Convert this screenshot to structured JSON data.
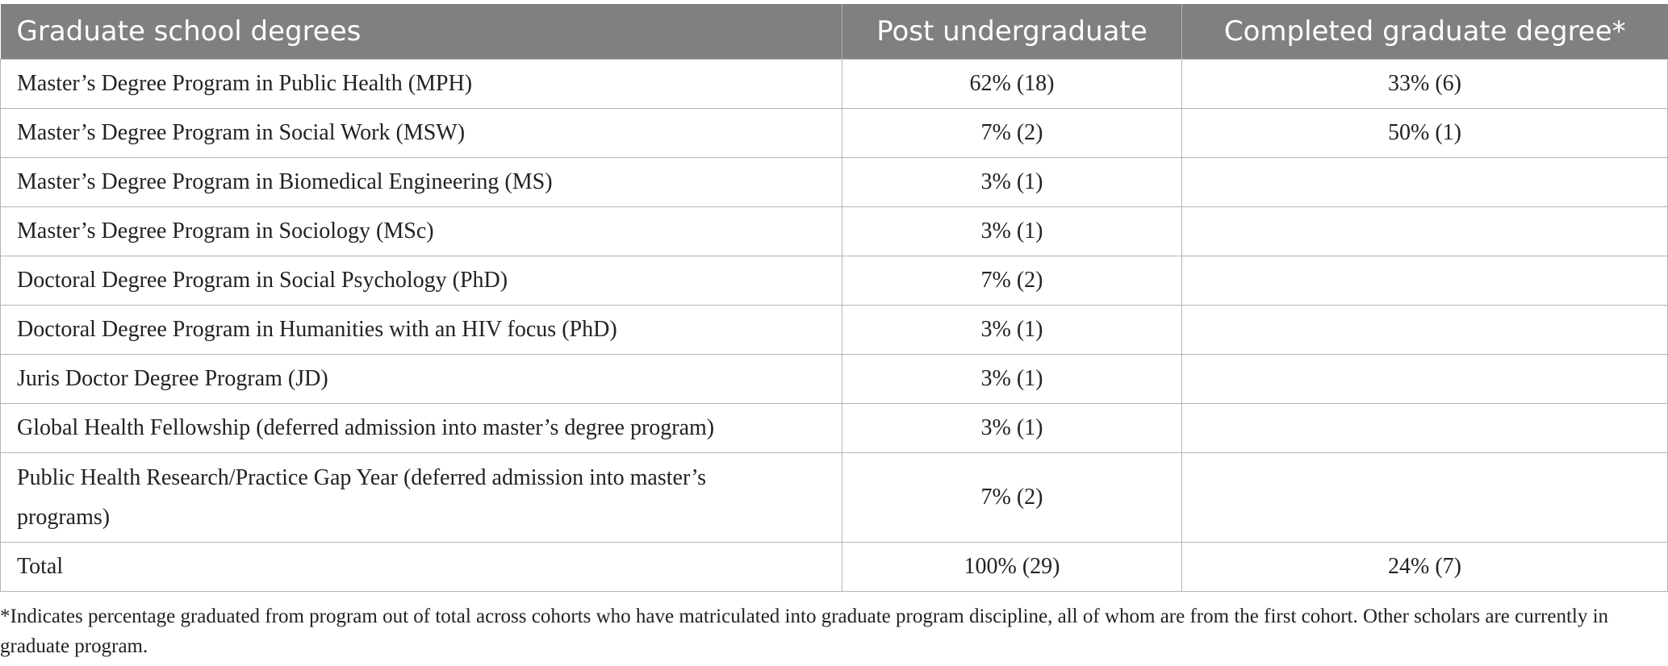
{
  "table": {
    "headers": [
      "Graduate school degrees",
      "Post undergraduate",
      "Completed graduate degree*"
    ],
    "rows": [
      [
        "Master’s Degree Program in Public Health (MPH)",
        "62% (18)",
        "33% (6)"
      ],
      [
        "Master’s Degree Program in Social Work (MSW)",
        "7% (2)",
        "50% (1)"
      ],
      [
        "Master’s Degree Program in Biomedical Engineering (MS)",
        "3% (1)",
        ""
      ],
      [
        "Master’s Degree Program in Sociology (MSc)",
        "3% (1)",
        ""
      ],
      [
        "Doctoral Degree Program in Social Psychology (PhD)",
        "7% (2)",
        ""
      ],
      [
        "Doctoral Degree Program in Humanities with an HIV focus (PhD)",
        "3% (1)",
        ""
      ],
      [
        "Juris Doctor Degree Program (JD)",
        "3% (1)",
        ""
      ],
      [
        "Global Health Fellowship (deferred admission into master’s degree program)",
        "3% (1)",
        ""
      ],
      [
        "Public Health Research/Practice Gap Year (deferred admission into master’s programs)",
        "7% (2)",
        ""
      ],
      [
        "Total",
        "100% (29)",
        "24% (7)"
      ]
    ]
  },
  "footnote": "*Indicates percentage graduated from program out of total across cohorts who have matriculated into graduate program discipline, all of whom are from the first cohort. Other scholars are currently in graduate program.",
  "colors": {
    "header_bg": "#808080",
    "header_text": "#ffffff",
    "grid_line": "#b4b4b4",
    "body_text": "#222222"
  }
}
